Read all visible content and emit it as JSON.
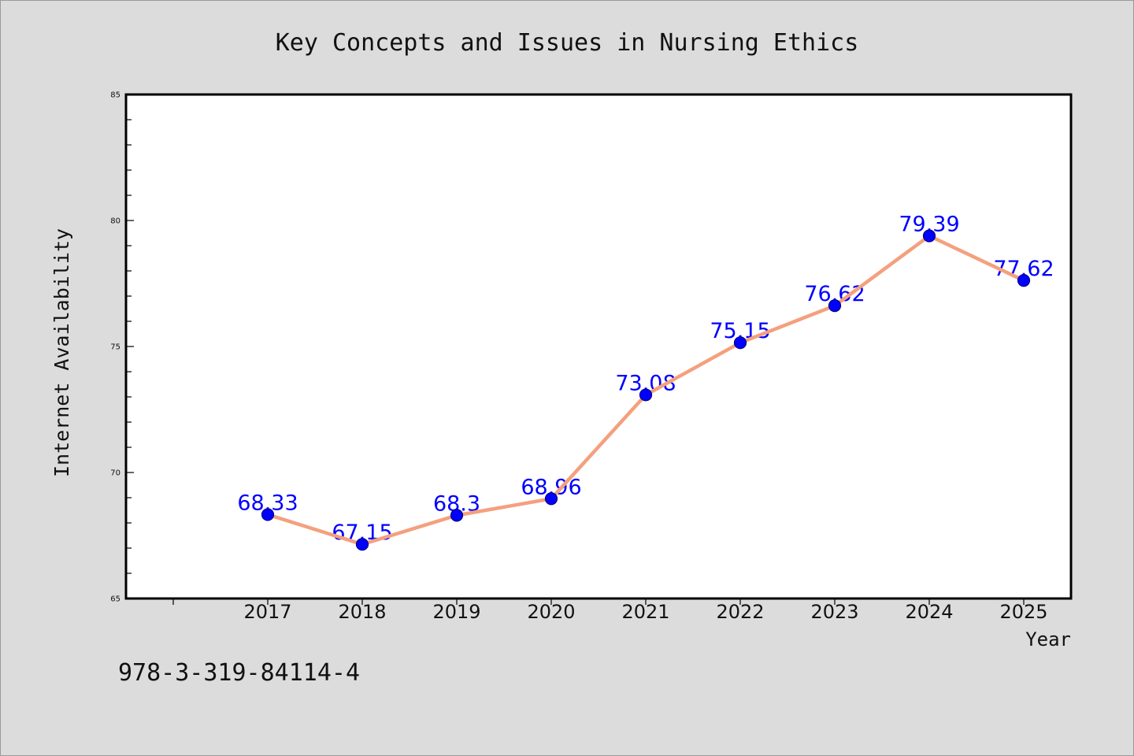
{
  "footnote": "978-3-319-84114-4",
  "chart_data": {
    "type": "line",
    "title": "Key Concepts and Issues in Nursing Ethics",
    "xlabel": "Year",
    "ylabel": "Internet Availability",
    "x": [
      2017,
      2018,
      2019,
      2020,
      2021,
      2022,
      2023,
      2024,
      2025
    ],
    "series": [
      {
        "values": [
          68.33,
          67.15,
          68.3,
          68.96,
          73.08,
          75.15,
          76.62,
          79.39,
          77.62
        ],
        "line_color": "#f4a07e",
        "marker_color": "#0000ff",
        "marker_edge_color": "#00008b"
      }
    ],
    "data_labels": true,
    "data_label_color": "#0000ff",
    "xlim": [
      2015.5,
      2025.5
    ],
    "ylim": [
      65,
      85
    ],
    "y_ticks": [
      65,
      70,
      75,
      80,
      85
    ],
    "y_minor_tick_step": 1,
    "grid": false,
    "legend": false,
    "colors": {
      "page_background": "#dcdcdc",
      "plot_background": "#ffffff",
      "frame": "#000000"
    }
  }
}
